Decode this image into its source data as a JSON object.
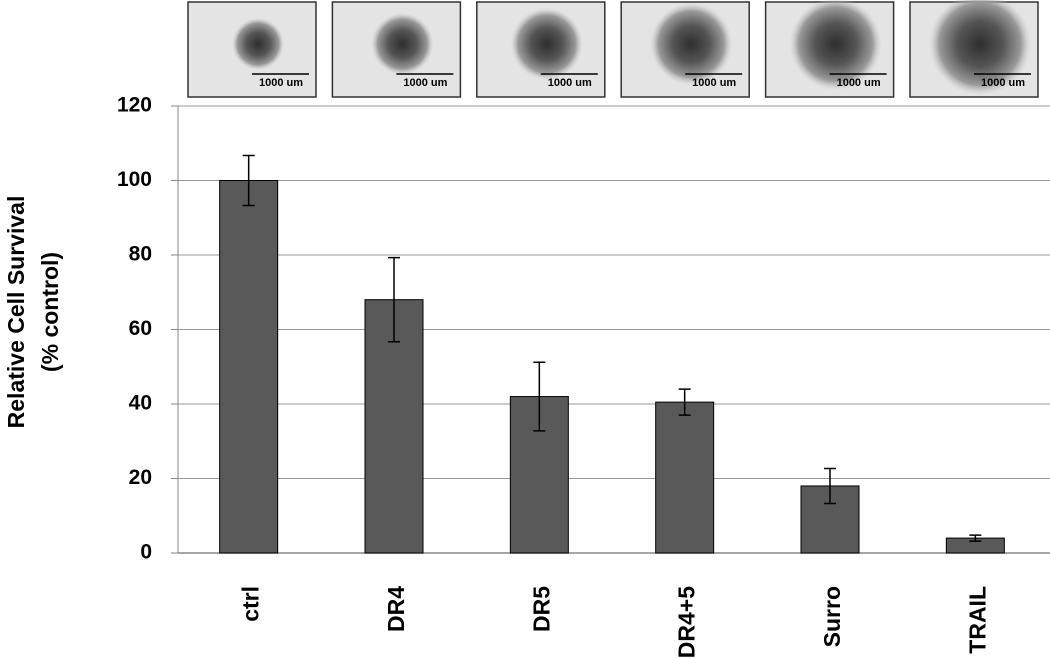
{
  "chart_data": {
    "type": "bar",
    "y_label": [
      "Relative Cell Survival",
      "(% control)"
    ],
    "categories": [
      "ctrl",
      "DR4",
      "DR5",
      "DR4+5",
      "Surro",
      "TRAIL"
    ],
    "values": [
      100,
      68,
      42,
      40.5,
      18,
      4
    ],
    "errors": [
      6.7,
      11.3,
      9.2,
      3.5,
      4.7,
      0.8
    ],
    "color": "#595959",
    "ylim": [
      0,
      120
    ],
    "yticks": [
      0,
      20,
      40,
      60,
      80,
      100,
      120
    ],
    "grid": true,
    "insets": [
      "1000 um",
      "1000 um",
      "1000 um",
      "1000 um",
      "1000 um",
      "1000 um"
    ]
  }
}
